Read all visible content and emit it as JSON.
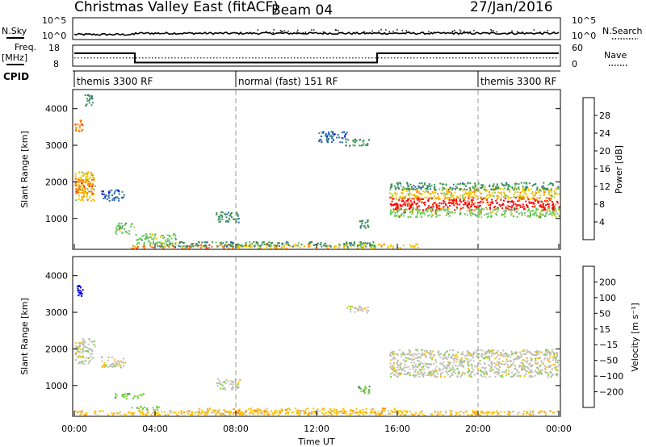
{
  "header": {
    "title": "Christmas Valley East (fitACF)",
    "beam": "Beam 04",
    "date": "27/Jan/2016"
  },
  "noise_panel": {
    "left_label": "N.Sky",
    "right_label": "N.Search",
    "left_ticks": [
      "10^5",
      "10^0"
    ],
    "right_ticks": [
      "10^5",
      "10^0"
    ]
  },
  "freq_panel": {
    "left_label_line1": "Freq.",
    "left_label_line2": "[MHz]",
    "right_label": "Nave",
    "left_ticks": [
      "18",
      "8"
    ],
    "right_ticks": [
      "60",
      "0"
    ],
    "freq_steps": [
      [
        0.0,
        14.5
      ],
      [
        3.0,
        14.5
      ],
      [
        3.0,
        9.5
      ],
      [
        15.0,
        9.5
      ],
      [
        15.0,
        14.5
      ],
      [
        24.0,
        14.5
      ]
    ],
    "nave_level": 24
  },
  "cpid_panel": {
    "label": "CPID",
    "segments": [
      {
        "text": "themis 3300 RF",
        "start": 0.0
      },
      {
        "text": "normal (fast) 151 RF",
        "start": 8.0
      },
      {
        "text": "themis 3300 RF",
        "start": 20.0
      }
    ]
  },
  "power_panel": {
    "ylabel": "Slant Range [km]",
    "yticks": [
      "4000",
      "3000",
      "2000",
      "1000"
    ],
    "colorbar_label": "Power [dB]",
    "colorbar_ticks": [
      "28",
      "24",
      "20",
      "16",
      "12",
      "8",
      "4"
    ]
  },
  "velocity_panel": {
    "ylabel": "Slant Range [km]",
    "yticks": [
      "4000",
      "3000",
      "2000",
      "1000"
    ],
    "colorbar_label": "Velocity [m s⁻¹]",
    "colorbar_ticks": [
      "200",
      "100",
      "50",
      "15",
      "−15",
      "−50",
      "−100",
      "−200"
    ]
  },
  "xaxis": {
    "label": "Time UT",
    "ticks": [
      "00:00",
      "04:00",
      "08:00",
      "12:00",
      "16:00",
      "20:00",
      "00:00"
    ]
  },
  "chart_data": {
    "type": "heatmap",
    "title": "Christmas Valley East (fitACF)",
    "x_range_hours": [
      0,
      24
    ],
    "y_range_km": [
      180,
      4500
    ],
    "dashed_lines_hours": [
      8,
      20
    ],
    "colors": {
      "power": [
        "#0000ff",
        "#2b6ab0",
        "#3d8f57",
        "#69c85c",
        "#f2c500",
        "#ff7a00",
        "#ff0000"
      ],
      "velocity": [
        "#0000e0",
        "#3060c0",
        "#3d8f57",
        "#79d13a",
        "#bebeb4",
        "#ffc000",
        "#ff8800",
        "#ff3800",
        "#e00000"
      ]
    },
    "power_blobs": [
      {
        "t0": 15.6,
        "t1": 24.0,
        "r0": 1250,
        "r1": 1600,
        "level": 6
      },
      {
        "t0": 15.6,
        "t1": 24.0,
        "r0": 1550,
        "r1": 1850,
        "level": 4
      },
      {
        "t0": 15.6,
        "t1": 24.0,
        "r0": 1050,
        "r1": 1300,
        "level": 3
      },
      {
        "t0": 15.6,
        "t1": 24.0,
        "r0": 1800,
        "r1": 2000,
        "level": 2
      },
      {
        "t0": 0.0,
        "t1": 1.0,
        "r0": 1500,
        "r1": 2300,
        "level": 4
      },
      {
        "t0": 0.0,
        "t1": 1.0,
        "r0": 1700,
        "r1": 2100,
        "level": 5
      },
      {
        "t0": 0.0,
        "t1": 0.4,
        "r0": 3400,
        "r1": 3700,
        "level": 5
      },
      {
        "t0": 0.5,
        "t1": 0.9,
        "r0": 4100,
        "r1": 4400,
        "level": 2
      },
      {
        "t0": 2.8,
        "t1": 8.0,
        "r0": 200,
        "r1": 300,
        "level": 5
      },
      {
        "t0": 8.0,
        "t1": 17.0,
        "r0": 200,
        "r1": 320,
        "level": 4
      },
      {
        "t0": 4.0,
        "t1": 15.0,
        "r0": 250,
        "r1": 380,
        "level": 2
      },
      {
        "t0": 13.4,
        "t1": 14.6,
        "r0": 3000,
        "r1": 3200,
        "level": 2
      },
      {
        "t0": 12.0,
        "t1": 13.5,
        "r0": 3100,
        "r1": 3400,
        "level": 1
      },
      {
        "t0": 14.0,
        "t1": 14.6,
        "r0": 750,
        "r1": 1000,
        "level": 2
      },
      {
        "t0": 1.3,
        "t1": 2.5,
        "r0": 1500,
        "r1": 1800,
        "level": 1
      },
      {
        "t0": 7.0,
        "t1": 8.2,
        "r0": 900,
        "r1": 1200,
        "level": 2
      },
      {
        "t0": 2.0,
        "t1": 3.0,
        "r0": 600,
        "r1": 900,
        "level": 3
      },
      {
        "t0": 3.0,
        "t1": 5.0,
        "r0": 300,
        "r1": 600,
        "level": 3
      }
    ],
    "velocity_blobs": [
      {
        "t0": 15.6,
        "t1": 24.0,
        "r0": 1250,
        "r1": 1900,
        "level": 4
      },
      {
        "t0": 15.6,
        "t1": 24.0,
        "r0": 1850,
        "r1": 2000,
        "level": 4
      },
      {
        "t0": 0.0,
        "t1": 1.0,
        "r0": 1600,
        "r1": 2300,
        "level": 4
      },
      {
        "t0": 0.1,
        "t1": 0.4,
        "r0": 3450,
        "r1": 3750,
        "level": 0
      },
      {
        "t0": 2.0,
        "t1": 3.5,
        "r0": 650,
        "r1": 800,
        "level": 3
      },
      {
        "t0": 2.8,
        "t1": 4.2,
        "r0": 350,
        "r1": 450,
        "level": 3
      },
      {
        "t0": 0.0,
        "t1": 24.0,
        "r0": 200,
        "r1": 330,
        "level": 5
      },
      {
        "t0": 6.0,
        "t1": 16.0,
        "r0": 250,
        "r1": 400,
        "level": 5
      },
      {
        "t0": 14.0,
        "t1": 14.6,
        "r0": 800,
        "r1": 1000,
        "level": 3
      },
      {
        "t0": 13.4,
        "t1": 14.6,
        "r0": 3000,
        "r1": 3200,
        "level": 4
      },
      {
        "t0": 7.0,
        "t1": 8.2,
        "r0": 900,
        "r1": 1200,
        "level": 4
      },
      {
        "t0": 1.3,
        "t1": 2.5,
        "r0": 1500,
        "r1": 1800,
        "level": 4
      }
    ]
  }
}
